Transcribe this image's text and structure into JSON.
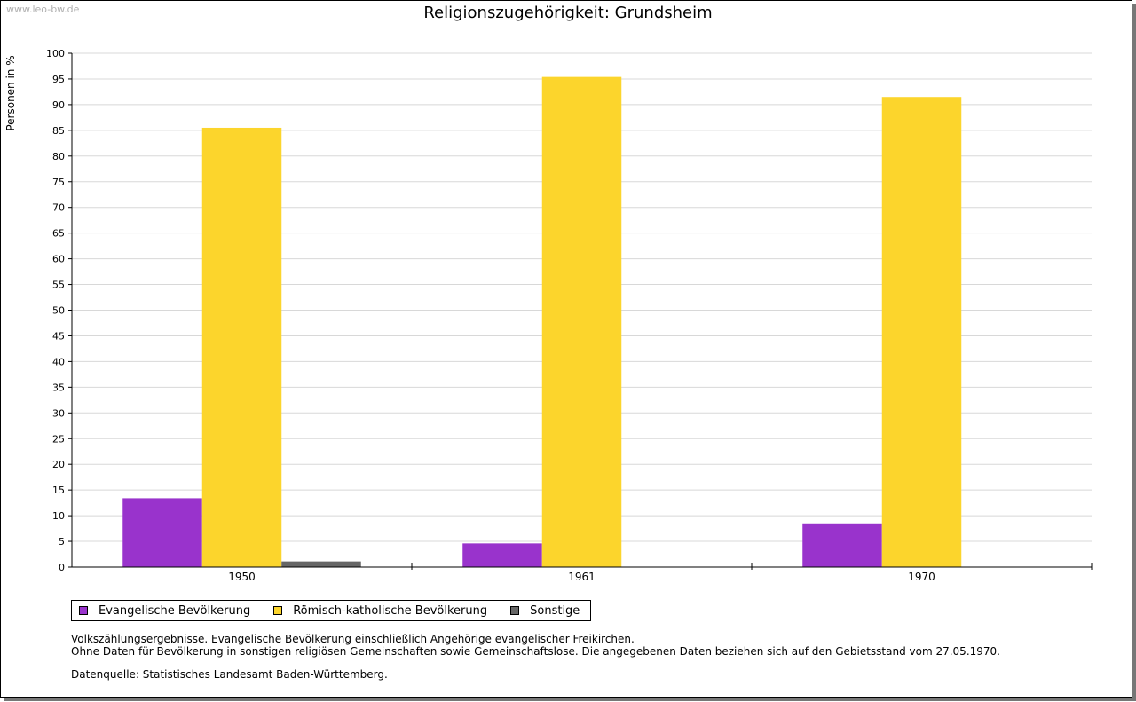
{
  "watermark": "www.leo-bw.de",
  "chart_data": {
    "type": "bar",
    "title": "Religionszugehörigkeit: Grundsheim",
    "ylabel": "Personen in %",
    "xlabel": "",
    "categories": [
      "1950",
      "1961",
      "1970"
    ],
    "series": [
      {
        "name": "Evangelische Bevölkerung",
        "color": "#9933cc",
        "values": [
          13.4,
          4.6,
          8.5
        ]
      },
      {
        "name": "Römisch-katholische Bevölkerung",
        "color": "#fcd52c",
        "values": [
          85.5,
          95.4,
          91.5
        ]
      },
      {
        "name": "Sonstige",
        "color": "#666666",
        "values": [
          1.1,
          0,
          0
        ]
      }
    ],
    "ylim": [
      0,
      100
    ],
    "yticks": [
      "0",
      "5",
      "10",
      "15",
      "20",
      "25",
      "30",
      "35",
      "40",
      "45",
      "50",
      "55",
      "60",
      "65",
      "70",
      "75",
      "80",
      "85",
      "90",
      "95",
      "100"
    ],
    "grid": true,
    "legend_position": "bottom-left"
  },
  "notes": {
    "line1": "Volkszählungsergebnisse. Evangelische Bevölkerung einschließlich Angehörige evangelischer Freikirchen.",
    "line2": "Ohne Daten für Bevölkerung in sonstigen religiösen Gemeinschaften sowie Gemeinschaftslose. Die angegebenen Daten beziehen sich auf den Gebietsstand vom 27.05.1970.",
    "source": "Datenquelle: Statistisches Landesamt Baden-Württemberg."
  }
}
